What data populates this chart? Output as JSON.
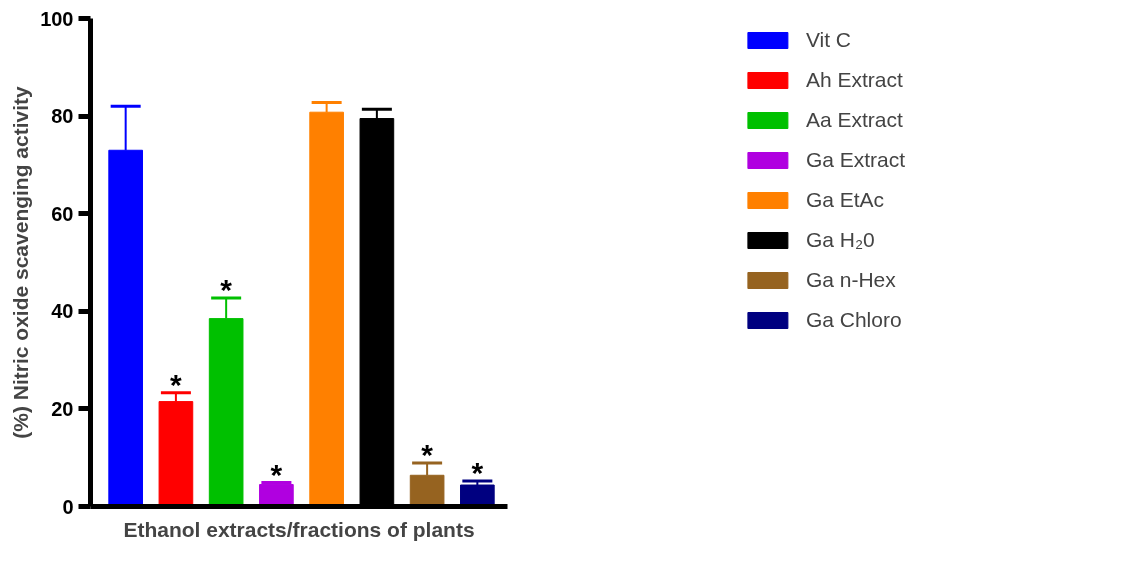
{
  "chart_data": {
    "type": "bar",
    "xlabel": "Ethanol extracts/fractions of plants",
    "ylabel": "(%) Nitric oxide scavenging activity",
    "categories": [
      null,
      null,
      null,
      null,
      null,
      null,
      null,
      null
    ],
    "series": [
      {
        "name": "Vit C",
        "color": "#0000ff",
        "values": [
          73,
          null,
          null,
          null,
          null,
          null,
          null,
          null
        ],
        "errors": [
          9,
          null,
          null,
          null,
          null,
          null,
          null,
          null
        ]
      },
      {
        "name": "Ah Extract",
        "color": "#ff0000",
        "values": [
          null,
          21.5,
          null,
          null,
          null,
          null,
          null,
          null
        ],
        "errors": [
          null,
          1.8,
          null,
          null,
          null,
          null,
          null,
          null
        ],
        "value_labels": [
          null,
          "*",
          null,
          null,
          null,
          null,
          null,
          null
        ]
      },
      {
        "name": "Aa Extract",
        "color": "#00c000",
        "values": [
          null,
          null,
          38.5,
          null,
          null,
          null,
          null,
          null
        ],
        "errors": [
          null,
          null,
          4.2,
          null,
          null,
          null,
          null,
          null
        ],
        "value_labels": [
          null,
          null,
          "*",
          null,
          null,
          null,
          null,
          null
        ]
      },
      {
        "name": "Ga Extract",
        "color": "#b000e0",
        "values": [
          null,
          null,
          null,
          4.5,
          null,
          null,
          null,
          null
        ],
        "errors": [
          null,
          null,
          null,
          0.4,
          null,
          null,
          null,
          null
        ],
        "value_labels": [
          null,
          null,
          null,
          "*",
          null,
          null,
          null,
          null
        ]
      },
      {
        "name": "Ga EtAc",
        "color": "#ff8000",
        "values": [
          null,
          null,
          null,
          null,
          80.8,
          null,
          null,
          null
        ],
        "errors": [
          null,
          null,
          null,
          null,
          2,
          null,
          null,
          null
        ]
      },
      {
        "name": "Ga H₂0",
        "color": "#000000",
        "values": [
          null,
          null,
          null,
          null,
          null,
          79.5,
          null,
          null
        ],
        "errors": [
          null,
          null,
          null,
          null,
          null,
          1.9,
          null,
          null
        ]
      },
      {
        "name": "Ga n-Hex",
        "color": "#966320",
        "values": [
          null,
          null,
          null,
          null,
          null,
          null,
          6.4,
          null
        ],
        "errors": [
          null,
          null,
          null,
          null,
          null,
          null,
          2.5,
          null
        ],
        "value_labels": [
          null,
          null,
          null,
          null,
          null,
          null,
          "*",
          null
        ]
      },
      {
        "name": "Ga Chloro",
        "color": "#000080",
        "values": [
          null,
          null,
          null,
          null,
          null,
          null,
          null,
          4.4
        ],
        "errors": [
          null,
          null,
          null,
          null,
          null,
          null,
          null,
          0.8
        ],
        "value_labels": [
          null,
          null,
          null,
          null,
          null,
          null,
          null,
          "*"
        ]
      }
    ],
    "ylim": [
      0,
      100
    ],
    "yticks": [
      0,
      20,
      40,
      60,
      80,
      100
    ],
    "grid": false,
    "legend": "right"
  }
}
